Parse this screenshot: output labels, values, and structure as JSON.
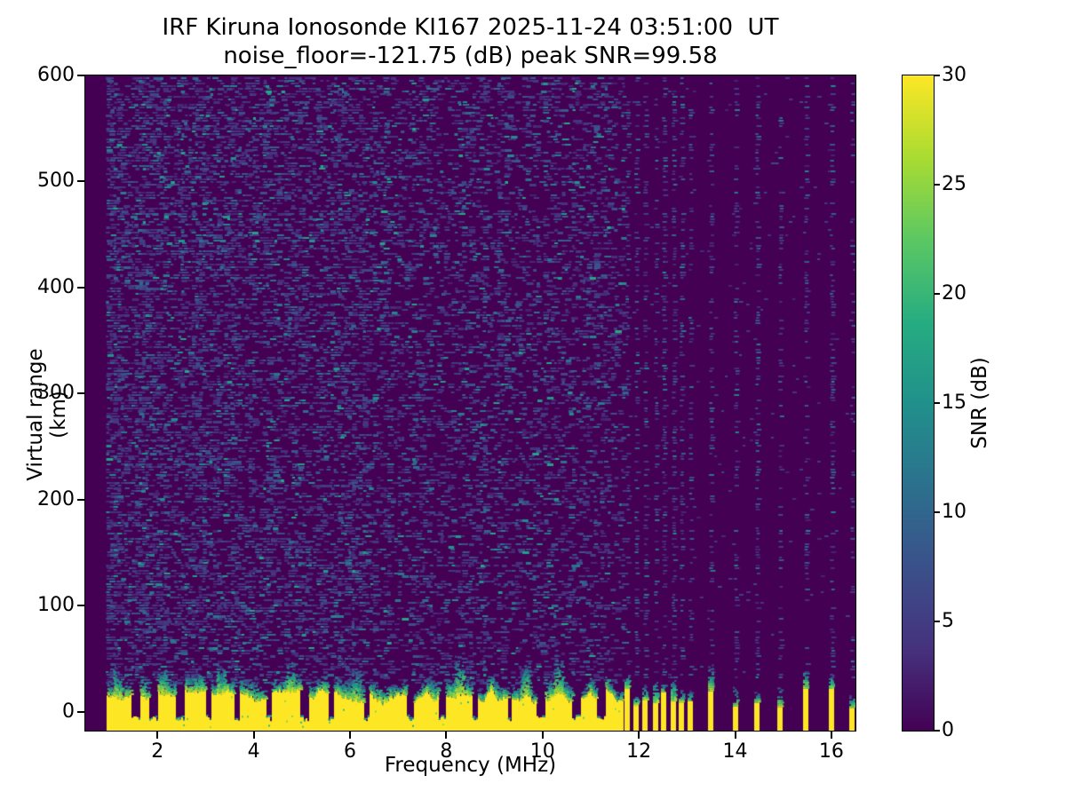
{
  "figure": {
    "title_line1": "IRF Kiruna Ionosonde KI167 2025-11-24 03:51:00  UT",
    "title_line2": "noise_floor=-121.75 (dB) peak SNR=99.58"
  },
  "chart_data": {
    "type": "heatmap",
    "title": "IRF Kiruna Ionosonde KI167 2025-11-24 03:51:00  UT",
    "subtitle": "noise_floor=-121.75 (dB) peak SNR=99.58",
    "station": "IRF Kiruna Ionosonde KI167",
    "timestamp_ut": "2025-11-24 03:51:00",
    "noise_floor_db": -121.75,
    "peak_snr_db": 99.58,
    "xlabel": "Frequency (MHz)",
    "ylabel": "Virtual range (km)",
    "xlim": [
      0.5,
      16.5
    ],
    "ylim": [
      -18,
      600
    ],
    "xticks": [
      2,
      4,
      6,
      8,
      10,
      12,
      14,
      16
    ],
    "yticks": [
      0,
      100,
      200,
      300,
      400,
      500,
      600
    ],
    "grid": false,
    "colorbar": {
      "label": "SNR (dB)",
      "min": 0,
      "max": 30,
      "ticks": [
        0,
        5,
        10,
        15,
        20,
        25,
        30
      ],
      "colormap": "viridis"
    },
    "features": {
      "scan_start_mhz": 0.95,
      "continuous_scan_end_mhz": 11.65,
      "discrete_frequencies_mhz": [
        11.75,
        11.95,
        12.13,
        12.34,
        12.52,
        12.71,
        12.89,
        13.06,
        13.5,
        14.0,
        14.46,
        14.94,
        15.46,
        16.0,
        16.42
      ],
      "ground_echo_band_km": [
        -18,
        28
      ],
      "echo_cap_top_km": 55,
      "absorption_notch_frequencies_mhz": [
        1.55,
        1.9,
        2.45,
        3.05,
        3.65,
        4.3,
        5.05,
        5.6,
        6.33,
        7.25,
        7.9,
        8.6,
        9.3,
        9.95,
        10.7,
        11.2
      ],
      "plume_frequencies_mhz": [
        1.15,
        2.1,
        3.3,
        4.75,
        6.1,
        8.25,
        9.6,
        10.3
      ],
      "background_snr_db": 0,
      "noise_speckle_max_db": 16
    },
    "viridis_stops": [
      "#440154",
      "#46327e",
      "#3b518b",
      "#2c718e",
      "#21918c",
      "#27ad81",
      "#5cc863",
      "#aadc32",
      "#fde725"
    ]
  }
}
